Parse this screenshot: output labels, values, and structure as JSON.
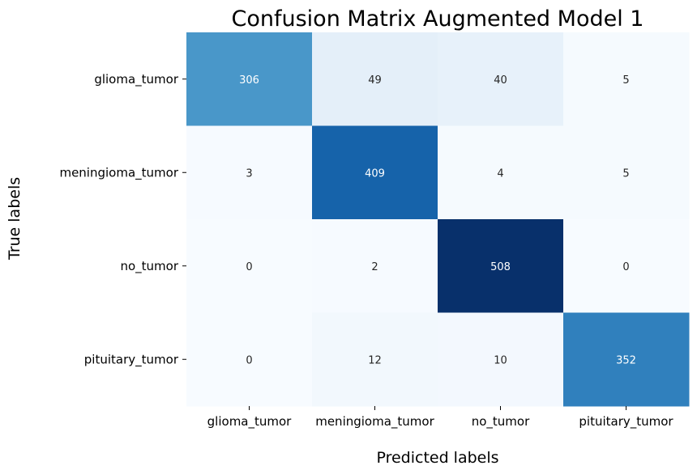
{
  "chart_data": {
    "type": "heatmap",
    "title": "Confusion Matrix Augmented Model 1",
    "xlabel": "Predicted labels",
    "ylabel": "True labels",
    "x_categories": [
      "glioma_tumor",
      "meningioma_tumor",
      "no_tumor",
      "pituitary_tumor"
    ],
    "y_categories": [
      "glioma_tumor",
      "meningioma_tumor",
      "no_tumor",
      "pituitary_tumor"
    ],
    "values": [
      [
        306,
        49,
        40,
        5
      ],
      [
        3,
        409,
        4,
        5
      ],
      [
        0,
        2,
        508,
        0
      ],
      [
        0,
        12,
        10,
        352
      ]
    ],
    "colormap": "Blues",
    "colorbar": false,
    "annotations": true
  }
}
